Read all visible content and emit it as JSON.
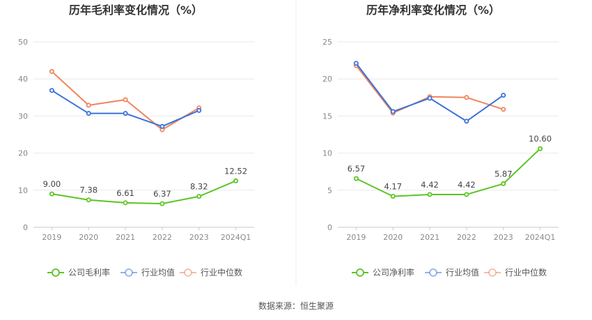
{
  "source": "数据来源：恒生聚源",
  "chart_data": [
    {
      "type": "line",
      "title": "历年毛利率变化情况（%）",
      "categories": [
        "2019",
        "2020",
        "2021",
        "2022",
        "2023",
        "2024Q1"
      ],
      "ylim": [
        0,
        50
      ],
      "yticks": [
        "0",
        "10",
        "20",
        "30",
        "40",
        "50"
      ],
      "grid": true,
      "legend_position": "bottom",
      "series": [
        {
          "name": "公司毛利率",
          "color": "#5bc424",
          "values": [
            9.0,
            7.38,
            6.61,
            6.37,
            8.32,
            12.52
          ],
          "labels": [
            "9.00",
            "7.38",
            "6.61",
            "6.37",
            "8.32",
            "12.52"
          ]
        },
        {
          "name": "行业均值",
          "color": "#3b72d8",
          "values": [
            36.9,
            30.7,
            30.7,
            27.2,
            31.5,
            null
          ]
        },
        {
          "name": "行业中位数",
          "color": "#f0845c",
          "values": [
            42.0,
            32.9,
            34.4,
            26.3,
            32.2,
            null
          ]
        }
      ]
    },
    {
      "type": "line",
      "title": "历年净利率变化情况（%）",
      "categories": [
        "2019",
        "2020",
        "2021",
        "2022",
        "2023",
        "2024Q1"
      ],
      "ylim": [
        0,
        25
      ],
      "yticks": [
        "0",
        "5",
        "10",
        "15",
        "20",
        "25"
      ],
      "grid": true,
      "legend_position": "bottom",
      "series": [
        {
          "name": "公司净利率",
          "color": "#5bc424",
          "values": [
            6.57,
            4.17,
            4.42,
            4.42,
            5.87,
            10.6
          ],
          "labels": [
            "6.57",
            "4.17",
            "4.42",
            "4.42",
            "5.87",
            "10.60"
          ]
        },
        {
          "name": "行业均值",
          "color": "#3b72d8",
          "values": [
            22.1,
            15.6,
            17.4,
            14.3,
            17.8,
            null
          ]
        },
        {
          "name": "行业中位数",
          "color": "#f0845c",
          "values": [
            21.8,
            15.4,
            17.6,
            17.5,
            15.9,
            null
          ]
        }
      ]
    }
  ]
}
